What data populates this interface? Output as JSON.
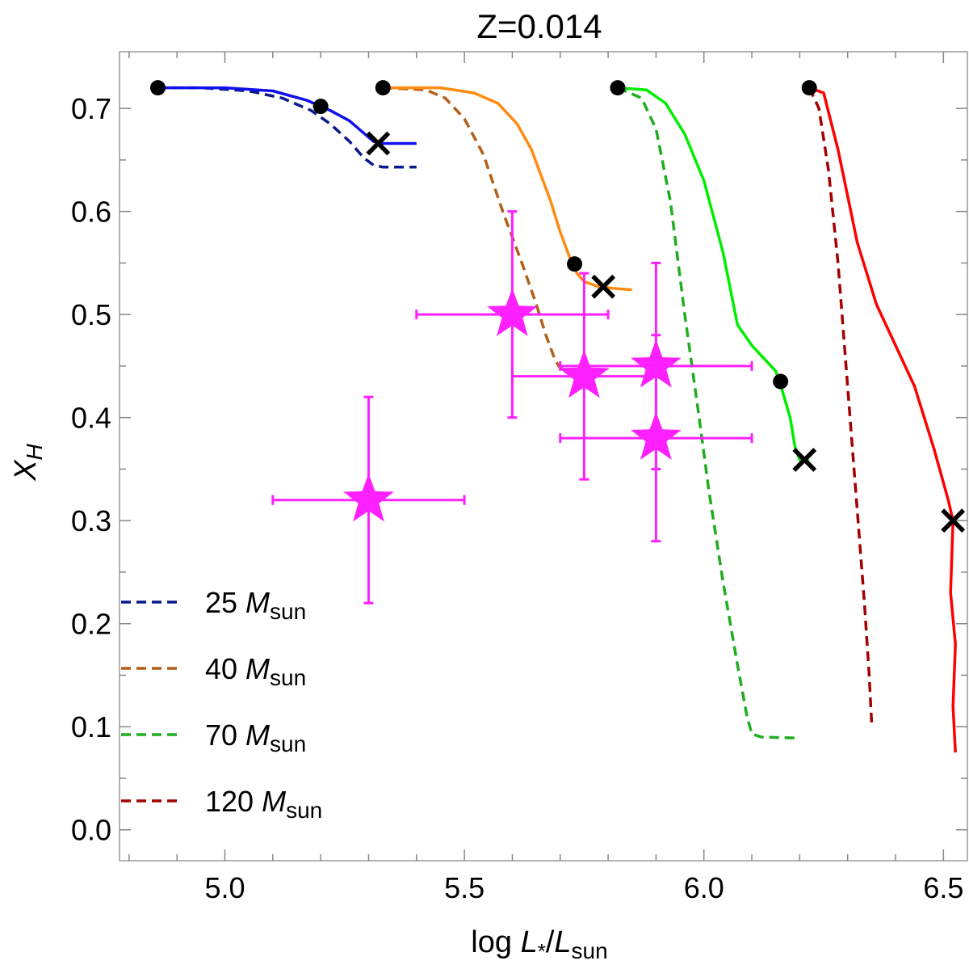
{
  "chart_data": {
    "type": "line",
    "title": "Z=0.014",
    "xlabel": {
      "prefix": "log ",
      "L1": "L",
      "sub1": "*",
      "slash": "/",
      "L2": "L",
      "sub2": "sun"
    },
    "ylabel": {
      "X": "X",
      "sub": "H"
    },
    "xlim": [
      4.78,
      6.55
    ],
    "ylim": [
      -0.03,
      0.755
    ],
    "xticks_major": [
      5.0,
      5.5,
      6.0,
      6.5
    ],
    "xtick_labels": [
      "5.0",
      "5.5",
      "6.0",
      "6.5"
    ],
    "yticks_major": [
      0.0,
      0.1,
      0.2,
      0.3,
      0.4,
      0.5,
      0.6,
      0.7
    ],
    "ytick_labels": [
      "0.0",
      "0.1",
      "0.2",
      "0.3",
      "0.4",
      "0.5",
      "0.6",
      "0.7"
    ],
    "legend": {
      "position": "lower-left",
      "entries": [
        {
          "num": "25",
          "M": "M",
          "sub": "sun",
          "color": "#0a1a8c"
        },
        {
          "num": "40",
          "M": "M",
          "sub": "sun",
          "color": "#b35f1a"
        },
        {
          "num": "70",
          "M": "M",
          "sub": "sun",
          "color": "#1fad1f"
        },
        {
          "num": "120",
          "M": "M",
          "sub": "sun",
          "color": "#a30000"
        }
      ]
    },
    "series_dashed": [
      {
        "name": "25 Msun",
        "color": "#0a1a8c",
        "x": [
          4.86,
          4.95,
          5.05,
          5.12,
          5.18,
          5.22,
          5.26,
          5.29,
          5.31,
          5.33,
          5.4
        ],
        "y": [
          0.72,
          0.72,
          0.717,
          0.71,
          0.698,
          0.685,
          0.668,
          0.652,
          0.645,
          0.643,
          0.643
        ]
      },
      {
        "name": "40 Msun",
        "color": "#b35f1a",
        "x": [
          5.33,
          5.42,
          5.46,
          5.5,
          5.54,
          5.58,
          5.62,
          5.65,
          5.67,
          5.69,
          5.7,
          5.72
        ],
        "y": [
          0.72,
          0.718,
          0.71,
          0.69,
          0.655,
          0.6,
          0.55,
          0.51,
          0.48,
          0.455,
          0.448,
          0.445
        ]
      },
      {
        "name": "70 Msun",
        "color": "#1fad1f",
        "x": [
          5.82,
          5.87,
          5.9,
          5.93,
          5.96,
          5.99,
          6.01,
          6.04,
          6.07,
          6.09,
          6.1,
          6.12,
          6.2
        ],
        "y": [
          0.72,
          0.71,
          0.68,
          0.61,
          0.5,
          0.4,
          0.33,
          0.24,
          0.16,
          0.11,
          0.093,
          0.09,
          0.089
        ]
      },
      {
        "name": "120 Msun",
        "color": "#a30000",
        "x": [
          6.22,
          6.24,
          6.26,
          6.28,
          6.3,
          6.32,
          6.335,
          6.345,
          6.35
        ],
        "y": [
          0.72,
          0.7,
          0.64,
          0.55,
          0.43,
          0.31,
          0.22,
          0.15,
          0.104
        ]
      }
    ],
    "series_solid": [
      {
        "name": "25 Msun model",
        "color": "#1010ee",
        "x": [
          4.86,
          5.0,
          5.1,
          5.17,
          5.22,
          5.26,
          5.29,
          5.31,
          5.33,
          5.4
        ],
        "y": [
          0.72,
          0.72,
          0.717,
          0.708,
          0.698,
          0.688,
          0.676,
          0.668,
          0.666,
          0.666
        ]
      },
      {
        "name": "40 Msun model",
        "color": "#ff8c0f",
        "x": [
          5.33,
          5.45,
          5.52,
          5.57,
          5.61,
          5.64,
          5.66,
          5.68,
          5.7,
          5.72,
          5.735,
          5.75,
          5.78,
          5.82,
          5.85
        ],
        "y": [
          0.72,
          0.72,
          0.715,
          0.705,
          0.685,
          0.66,
          0.635,
          0.61,
          0.58,
          0.555,
          0.54,
          0.532,
          0.527,
          0.525,
          0.524
        ]
      },
      {
        "name": "70 Msun model",
        "color": "#00ee00",
        "x": [
          5.82,
          5.88,
          5.92,
          5.96,
          6.0,
          6.04,
          6.07,
          6.1,
          6.13,
          6.15,
          6.16,
          6.18,
          6.19,
          6.2,
          6.22
        ],
        "y": [
          0.72,
          0.718,
          0.705,
          0.675,
          0.63,
          0.56,
          0.49,
          0.47,
          0.455,
          0.445,
          0.432,
          0.4,
          0.372,
          0.359,
          0.358
        ]
      },
      {
        "name": "120 Msun model",
        "color": "#ff0000",
        "x": [
          6.22,
          6.25,
          6.28,
          6.32,
          6.36,
          6.4,
          6.44,
          6.48,
          6.51,
          6.52,
          6.515,
          6.525,
          6.52,
          6.525
        ],
        "y": [
          0.72,
          0.715,
          0.66,
          0.57,
          0.51,
          0.47,
          0.43,
          0.37,
          0.32,
          0.3,
          0.23,
          0.18,
          0.12,
          0.075
        ]
      }
    ],
    "dots": [
      {
        "x": 4.86,
        "y": 0.72
      },
      {
        "x": 5.2,
        "y": 0.702
      },
      {
        "x": 5.33,
        "y": 0.72
      },
      {
        "x": 5.73,
        "y": 0.549
      },
      {
        "x": 5.82,
        "y": 0.72
      },
      {
        "x": 6.16,
        "y": 0.435
      },
      {
        "x": 6.22,
        "y": 0.72
      }
    ],
    "crosses": [
      {
        "x": 5.32,
        "y": 0.666
      },
      {
        "x": 5.79,
        "y": 0.527
      },
      {
        "x": 6.21,
        "y": 0.359
      },
      {
        "x": 6.52,
        "y": 0.3
      }
    ],
    "observations": {
      "color": "#ff20ff",
      "points": [
        {
          "x": 5.3,
          "y": 0.32,
          "xerr": 0.2,
          "yerr": 0.1
        },
        {
          "x": 5.6,
          "y": 0.5,
          "xerr": 0.2,
          "yerr": 0.1
        },
        {
          "x": 5.75,
          "y": 0.44,
          "xerr": 0.15,
          "yerr": 0.1
        },
        {
          "x": 5.9,
          "y": 0.45,
          "xerr": 0.2,
          "yerr": 0.1
        },
        {
          "x": 5.9,
          "y": 0.38,
          "xerr": 0.2,
          "yerr": 0.1
        }
      ]
    }
  }
}
